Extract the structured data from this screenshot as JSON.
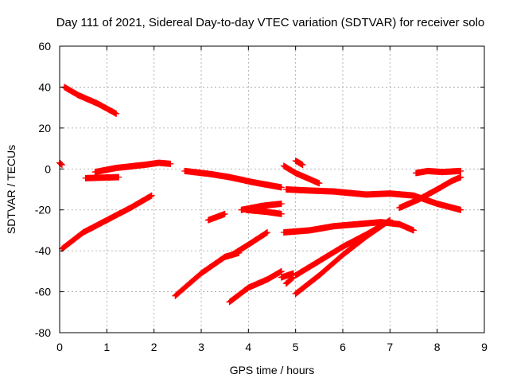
{
  "chart_data": {
    "type": "scatter",
    "title": "Day 111 of 2021, Sidereal Day-to-day VTEC variation (SDTVAR) for receiver solo",
    "xlabel": "GPS time / hours",
    "ylabel": "SDTVAR / TECUs",
    "xlim": [
      0,
      9
    ],
    "ylim": [
      -80,
      60
    ],
    "xticks": [
      0,
      1,
      2,
      3,
      4,
      5,
      6,
      7,
      8,
      9
    ],
    "yticks": [
      -80,
      -60,
      -40,
      -20,
      0,
      20,
      40,
      60
    ],
    "grid": true,
    "legend": "none",
    "marker": "plus",
    "color": "#ff0000",
    "series": [
      {
        "x": [
          0.0,
          0.05
        ],
        "y": [
          3,
          2
        ]
      },
      {
        "x": [
          0.1,
          0.4,
          0.8,
          1.2
        ],
        "y": [
          40,
          36,
          32,
          27
        ]
      },
      {
        "x": [
          0.05,
          0.5,
          1.0,
          1.5,
          1.95
        ],
        "y": [
          -39,
          -31,
          -25,
          -19,
          -13
        ]
      },
      {
        "x": [
          0.55,
          1.25
        ],
        "y": [
          -4.5,
          -4
        ]
      },
      {
        "x": [
          0.75,
          1.2,
          1.8,
          2.1,
          2.35
        ],
        "y": [
          -1.5,
          0.5,
          2,
          3,
          2.5
        ]
      },
      {
        "x": [
          2.45,
          3.0,
          3.5,
          3.8
        ],
        "y": [
          -62,
          -51,
          -43,
          -41
        ]
      },
      {
        "x": [
          2.65,
          3.2,
          3.6,
          4.1,
          4.7
        ],
        "y": [
          -1,
          -2.5,
          -4,
          -6.5,
          -9
        ]
      },
      {
        "x": [
          3.15,
          3.5
        ],
        "y": [
          -25,
          -22
        ]
      },
      {
        "x": [
          3.6,
          4.0,
          4.4,
          4.7
        ],
        "y": [
          -65,
          -58,
          -54,
          -50
        ]
      },
      {
        "x": [
          3.65,
          4.0,
          4.4
        ],
        "y": [
          -42,
          -37,
          -31
        ]
      },
      {
        "x": [
          3.85,
          4.3,
          4.7
        ],
        "y": [
          -20,
          -18,
          -17
        ]
      },
      {
        "x": [
          3.95,
          4.4,
          4.7
        ],
        "y": [
          -20,
          -21,
          -22
        ]
      },
      {
        "x": [
          4.7,
          4.95
        ],
        "y": [
          -53,
          -51
        ]
      },
      {
        "x": [
          4.75,
          5.0,
          5.3,
          5.5
        ],
        "y": [
          1.5,
          -2,
          -5,
          -7
        ]
      },
      {
        "x": [
          4.75,
          5.3,
          5.8,
          6.3,
          6.8,
          7.2,
          7.5
        ],
        "y": [
          -31,
          -30,
          -28,
          -27,
          -26,
          -27,
          -30
        ]
      },
      {
        "x": [
          4.8,
          5.25,
          5.8,
          6.5,
          7.0,
          7.5,
          8.0,
          8.5
        ],
        "y": [
          -10,
          -10.5,
          -11,
          -12.5,
          -12,
          -13,
          -17,
          -20
        ]
      },
      {
        "x": [
          4.8,
          4.95
        ],
        "y": [
          -56,
          -53
        ]
      },
      {
        "x": [
          5.0,
          5.15
        ],
        "y": [
          4,
          2
        ]
      },
      {
        "x": [
          5.0,
          5.5,
          6.0,
          6.5,
          6.8
        ],
        "y": [
          -52,
          -45,
          -38,
          -32,
          -28
        ]
      },
      {
        "x": [
          5.0,
          5.5,
          6.0,
          6.5,
          7.0
        ],
        "y": [
          -61,
          -52,
          -42,
          -33,
          -25
        ]
      },
      {
        "x": [
          7.2,
          7.6,
          8.0,
          8.3,
          8.5
        ],
        "y": [
          -19,
          -15,
          -10,
          -6,
          -4
        ]
      },
      {
        "x": [
          7.55,
          7.8,
          8.1,
          8.5
        ],
        "y": [
          -2,
          -1,
          -1.5,
          -1
        ]
      }
    ]
  }
}
